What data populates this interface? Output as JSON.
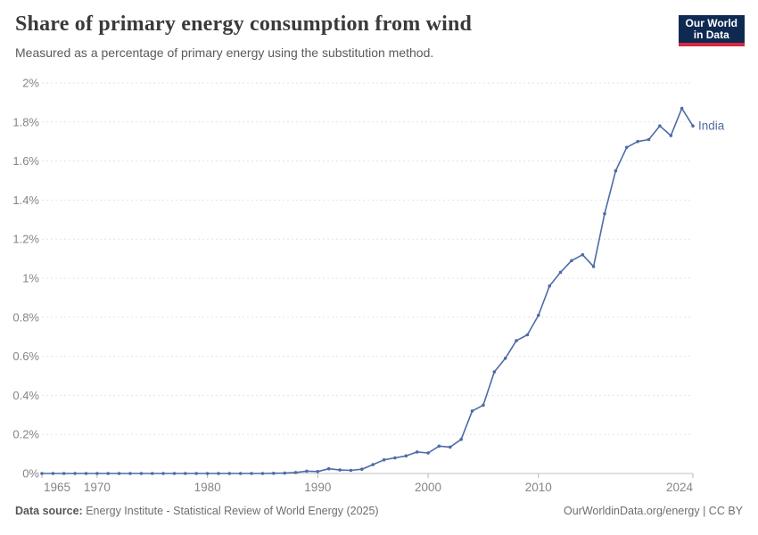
{
  "header": {
    "title": "Share of primary energy consumption from wind",
    "subtitle": "Measured as a percentage of primary energy using the substitution method.",
    "logo": {
      "line1": "Our World",
      "line2": "in Data",
      "bg_color": "#0f2a52",
      "accent_color": "#d8273d"
    }
  },
  "footer": {
    "source_label": "Data source:",
    "source_text": " Energy Institute - Statistical Review of World Energy (2025)",
    "link_text": "OurWorldinData.org/energy | CC BY"
  },
  "chart_data": {
    "type": "line",
    "title": "Share of primary energy consumption from wind",
    "xlabel": "",
    "ylabel": "",
    "xlim": [
      1965,
      2024
    ],
    "ylim": [
      0,
      2
    ],
    "grid": "horizontal-dashed",
    "legend_position": "end-of-line-label",
    "line_color": "#4e6ba7",
    "axis_text_color": "#858585",
    "gridline_color": "#e3e3e3",
    "baseline_color": "#c0c0c0",
    "x_ticks": [
      [
        1965,
        "1965"
      ],
      [
        1970,
        "1970"
      ],
      [
        1980,
        "1980"
      ],
      [
        1990,
        "1990"
      ],
      [
        2000,
        "2000"
      ],
      [
        2010,
        "2010"
      ],
      [
        2024,
        "2024"
      ]
    ],
    "y_ticks": [
      [
        0,
        "0%"
      ],
      [
        0.2,
        "0.2%"
      ],
      [
        0.4,
        "0.4%"
      ],
      [
        0.6,
        "0.6%"
      ],
      [
        0.8,
        "0.8%"
      ],
      [
        1,
        "1%"
      ],
      [
        1.2,
        "1.2%"
      ],
      [
        1.4,
        "1.4%"
      ],
      [
        1.6,
        "1.6%"
      ],
      [
        1.8,
        "1.8%"
      ],
      [
        2,
        "2%"
      ]
    ],
    "series": [
      {
        "name": "India",
        "label": "India",
        "color": "#4e6ba7",
        "years": [
          1965,
          1966,
          1967,
          1968,
          1969,
          1970,
          1971,
          1972,
          1973,
          1974,
          1975,
          1976,
          1977,
          1978,
          1979,
          1980,
          1981,
          1982,
          1983,
          1984,
          1985,
          1986,
          1987,
          1988,
          1989,
          1990,
          1991,
          1992,
          1993,
          1994,
          1995,
          1996,
          1997,
          1998,
          1999,
          2000,
          2001,
          2002,
          2003,
          2004,
          2005,
          2006,
          2007,
          2008,
          2009,
          2010,
          2011,
          2012,
          2013,
          2014,
          2015,
          2016,
          2017,
          2018,
          2019,
          2020,
          2021,
          2022,
          2023,
          2024
        ],
        "values": [
          0,
          0,
          0,
          0,
          0,
          0,
          0,
          0,
          0,
          0,
          0,
          0,
          0,
          0,
          0,
          0,
          0,
          0,
          0,
          0,
          0,
          0.001,
          0.002,
          0.005,
          0.012,
          0.01,
          0.024,
          0.018,
          0.016,
          0.022,
          0.045,
          0.07,
          0.08,
          0.09,
          0.11,
          0.105,
          0.14,
          0.135,
          0.175,
          0.32,
          0.35,
          0.52,
          0.59,
          0.68,
          0.71,
          0.81,
          0.96,
          1.03,
          1.09,
          1.12,
          1.06,
          1.33,
          1.55,
          1.67,
          1.7,
          1.71,
          1.78,
          1.73,
          1.87,
          1.78
        ]
      }
    ]
  }
}
